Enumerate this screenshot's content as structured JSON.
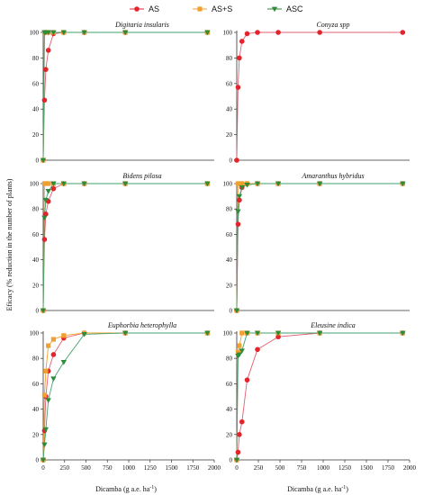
{
  "colors": {
    "AS": "#e3242b",
    "AS+S": "#f0a030",
    "ASC": "#2e8b3a",
    "axis": "#333333",
    "curve_AS": "#e06070",
    "curve_ASC": "#40a070"
  },
  "legend": [
    {
      "label": "AS",
      "marker": "circle",
      "color": "#e3242b"
    },
    {
      "label": "AS+S",
      "marker": "square",
      "color": "#f0a030"
    },
    {
      "label": "ASC",
      "marker": "triangle-down",
      "color": "#2e8b3a"
    }
  ],
  "y_axis_title": "Eficacy (% reduction in the number of plants)",
  "x_axis_title_left": "Dicamba (g a.e. ha",
  "x_axis_title_right": "Dicamba (g a.e. ha",
  "x_axis_title_sup": "-1",
  "x_axis_title_close": ")",
  "chart_data": [
    {
      "type": "scatter",
      "title": "Digitaria insularis",
      "xlim": [
        0,
        2000
      ],
      "ylim": [
        0,
        100
      ],
      "x_ticks": [],
      "y_ticks": [
        0,
        20,
        40,
        60,
        80,
        100
      ],
      "series": [
        {
          "name": "AS",
          "x": [
            0,
            15,
            30,
            60,
            120,
            240,
            480,
            960,
            1920
          ],
          "y": [
            0,
            47,
            71,
            86,
            99,
            100,
            100,
            100,
            100
          ]
        },
        {
          "name": "AS+S",
          "x": [
            0,
            15,
            30,
            60,
            120,
            240,
            480,
            960,
            1920
          ],
          "y": [
            0,
            100,
            100,
            100,
            100,
            100,
            100,
            100,
            100
          ]
        },
        {
          "name": "ASC",
          "x": [
            0,
            15,
            30,
            60,
            120,
            240,
            480,
            960,
            1920
          ],
          "y": [
            0,
            100,
            100,
            100,
            100,
            100,
            100,
            100,
            100
          ]
        }
      ]
    },
    {
      "type": "scatter",
      "title": "Conyza spp",
      "xlim": [
        0,
        2000
      ],
      "ylim": [
        0,
        100
      ],
      "x_ticks": [],
      "y_ticks": [
        0,
        20,
        40,
        60,
        80,
        100
      ],
      "series": [
        {
          "name": "AS",
          "x": [
            0,
            15,
            30,
            60,
            120,
            240,
            480,
            960,
            1920
          ],
          "y": [
            0,
            57,
            80,
            93,
            99,
            100,
            100,
            100,
            100
          ]
        }
      ]
    },
    {
      "type": "scatter",
      "title": "Bidens pilosa",
      "xlim": [
        0,
        2000
      ],
      "ylim": [
        0,
        100
      ],
      "x_ticks": [],
      "y_ticks": [
        0,
        20,
        40,
        60,
        80,
        100
      ],
      "series": [
        {
          "name": "AS",
          "x": [
            0,
            15,
            30,
            60,
            120,
            240,
            480,
            960,
            1920
          ],
          "y": [
            0,
            56,
            76,
            86,
            96,
            100,
            100,
            100,
            100
          ]
        },
        {
          "name": "AS+S",
          "x": [
            0,
            15,
            30,
            60,
            120,
            240,
            480,
            960,
            1920
          ],
          "y": [
            0,
            100,
            100,
            100,
            100,
            100,
            100,
            100,
            100
          ]
        },
        {
          "name": "ASC",
          "x": [
            0,
            15,
            30,
            60,
            120,
            240,
            480,
            960,
            1920
          ],
          "y": [
            0,
            73,
            87,
            94,
            100,
            100,
            100,
            100,
            100
          ]
        }
      ]
    },
    {
      "type": "scatter",
      "title": "Amaranthus hybridus",
      "xlim": [
        0,
        2000
      ],
      "ylim": [
        0,
        100
      ],
      "x_ticks": [],
      "y_ticks": [
        0,
        20,
        40,
        60,
        80,
        100
      ],
      "series": [
        {
          "name": "AS",
          "x": [
            0,
            15,
            30,
            60,
            120,
            240,
            480,
            960,
            1920
          ],
          "y": [
            0,
            68,
            87,
            97,
            100,
            100,
            100,
            100,
            100
          ]
        },
        {
          "name": "AS+S",
          "x": [
            0,
            15,
            30,
            60,
            120,
            240,
            480,
            960,
            1920
          ],
          "y": [
            0,
            100,
            100,
            100,
            100,
            100,
            100,
            100,
            100
          ]
        },
        {
          "name": "ASC",
          "x": [
            0,
            15,
            30,
            60,
            120,
            240,
            480,
            960,
            1920
          ],
          "y": [
            0,
            78,
            90,
            97,
            99,
            100,
            100,
            100,
            100
          ]
        }
      ]
    },
    {
      "type": "scatter",
      "title": "Euphorbia heterophylla",
      "xlim": [
        0,
        2000
      ],
      "ylim": [
        0,
        100
      ],
      "x_ticks": [
        0,
        250,
        500,
        750,
        1000,
        1250,
        1500,
        1750,
        2000
      ],
      "y_ticks": [
        0,
        20,
        40,
        60,
        80,
        100
      ],
      "series": [
        {
          "name": "AS",
          "x": [
            0,
            15,
            30,
            60,
            120,
            240,
            480,
            960,
            1920
          ],
          "y": [
            0,
            23,
            50,
            70,
            83,
            96,
            100,
            100,
            100
          ]
        },
        {
          "name": "AS+S",
          "x": [
            0,
            15,
            30,
            60,
            120,
            240,
            480,
            960,
            1920
          ],
          "y": [
            0,
            51,
            70,
            90,
            95,
            98,
            100,
            100,
            100
          ]
        },
        {
          "name": "ASC",
          "x": [
            0,
            15,
            30,
            60,
            120,
            240,
            480,
            960,
            1920
          ],
          "y": [
            0,
            12,
            24,
            47,
            64,
            77,
            99,
            100,
            100
          ]
        }
      ]
    },
    {
      "type": "scatter",
      "title": "Eleusine indica",
      "xlim": [
        0,
        2000
      ],
      "ylim": [
        0,
        100
      ],
      "x_ticks": [
        0,
        250,
        500,
        750,
        1000,
        1250,
        1500,
        1750,
        2000
      ],
      "y_ticks": [
        0,
        20,
        40,
        60,
        80,
        100
      ],
      "series": [
        {
          "name": "AS",
          "x": [
            0,
            15,
            30,
            60,
            120,
            240,
            480,
            960,
            1920
          ],
          "y": [
            0,
            6,
            20,
            30,
            63,
            87,
            97,
            100,
            100
          ]
        },
        {
          "name": "AS+S",
          "x": [
            0,
            15,
            30,
            60,
            120,
            240,
            480,
            960,
            1920
          ],
          "y": [
            0,
            85,
            90,
            100,
            100,
            100,
            100,
            100,
            100
          ]
        },
        {
          "name": "ASC",
          "x": [
            0,
            15,
            30,
            60,
            120,
            240,
            480,
            960,
            1920
          ],
          "y": [
            0,
            82,
            83,
            86,
            100,
            100,
            100,
            100,
            100
          ]
        }
      ]
    }
  ]
}
